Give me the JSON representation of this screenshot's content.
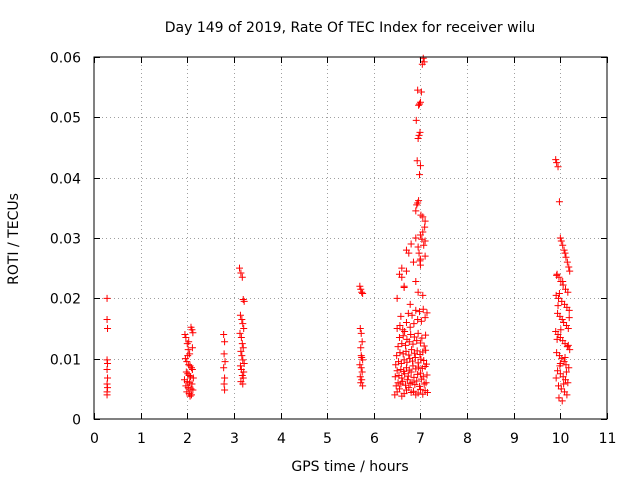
{
  "chart_data": {
    "type": "scatter",
    "title": "Day 149 of 2019, Rate Of TEC Index for receiver wilu",
    "xlabel": "GPS time / hours",
    "ylabel": "ROTI / TECUs",
    "xlim": [
      0,
      11
    ],
    "ylim": [
      0,
      0.06
    ],
    "xticks": [
      0,
      1,
      2,
      3,
      4,
      5,
      6,
      7,
      8,
      9,
      10,
      11
    ],
    "xtick_labels": [
      "0",
      "1",
      "2",
      "3",
      "4",
      "5",
      "6",
      "7",
      "8",
      "9",
      "10",
      "11"
    ],
    "yticks": [
      0,
      0.01,
      0.02,
      0.03,
      0.04,
      0.05,
      0.06
    ],
    "ytick_labels": [
      "0",
      "0.01",
      "0.02",
      "0.03",
      "0.04",
      "0.05",
      "0.06"
    ],
    "grid": true,
    "marker": "+",
    "color": "#ff0000",
    "series": [
      {
        "name": "ROTI",
        "x": [
          0.28,
          0.28,
          0.29,
          0.28,
          0.29,
          0.28,
          0.29,
          0.28,
          0.29,
          0.28,
          0.28,
          1.95,
          1.97,
          2.0,
          2.02,
          2.05,
          2.08,
          2.1,
          2.12,
          1.96,
          1.99,
          2.03,
          2.06,
          2.09,
          2.11,
          1.98,
          2.01,
          2.04,
          2.07,
          2.13,
          1.94,
          2.0,
          2.05,
          2.1,
          1.97,
          2.02,
          2.08,
          2.12,
          1.99,
          2.04,
          2.09,
          2.06,
          2.01,
          2.11,
          2.03,
          2.78,
          2.8,
          2.79,
          2.81,
          2.78,
          2.8,
          2.79,
          2.8,
          3.12,
          3.15,
          3.18,
          3.2,
          3.22,
          3.14,
          3.17,
          3.19,
          3.21,
          3.13,
          3.16,
          3.18,
          3.2,
          3.15,
          3.17,
          3.19,
          3.22,
          3.14,
          3.16,
          3.21,
          3.18,
          3.2,
          3.15,
          3.19,
          5.7,
          5.72,
          5.74,
          5.76,
          5.71,
          5.73,
          5.75,
          5.72,
          5.74,
          5.76,
          5.7,
          5.73,
          5.75,
          5.71,
          5.74,
          5.72,
          5.76,
          5.73,
          6.45,
          6.5,
          6.55,
          6.6,
          6.65,
          6.7,
          6.75,
          6.8,
          6.85,
          6.9,
          6.95,
          7.0,
          7.05,
          7.1,
          7.15,
          6.48,
          6.52,
          6.58,
          6.62,
          6.68,
          6.72,
          6.78,
          6.82,
          6.88,
          6.92,
          6.98,
          7.02,
          7.08,
          7.12,
          6.46,
          6.54,
          6.6,
          6.66,
          6.74,
          6.8,
          6.86,
          6.94,
          7.0,
          7.06,
          7.14,
          6.5,
          6.58,
          6.64,
          6.7,
          6.76,
          6.84,
          6.9,
          6.96,
          7.04,
          7.1,
          6.47,
          6.53,
          6.59,
          6.65,
          6.71,
          6.77,
          6.83,
          6.89,
          6.95,
          7.01,
          7.07,
          7.13,
          6.49,
          6.56,
          6.63,
          6.69,
          6.75,
          6.81,
          6.87,
          6.93,
          6.99,
          7.05,
          7.11,
          6.52,
          6.6,
          6.68,
          6.76,
          6.84,
          6.92,
          7.0,
          7.08,
          6.55,
          6.63,
          6.71,
          6.79,
          6.87,
          6.95,
          7.03,
          7.11,
          6.5,
          6.56,
          6.62,
          6.7,
          6.78,
          6.86,
          6.94,
          7.02,
          7.1,
          6.58,
          6.66,
          6.74,
          6.82,
          6.9,
          6.98,
          7.06,
          7.14,
          6.5,
          6.55,
          6.6,
          6.65,
          6.7,
          6.78,
          6.85,
          6.9,
          6.95,
          7.0,
          7.05,
          7.1,
          6.6,
          6.7,
          6.8,
          6.9,
          7.0,
          7.1,
          6.65,
          6.75,
          6.95,
          7.05,
          6.9,
          6.92,
          6.94,
          6.96,
          6.98,
          7.0,
          6.93,
          6.95,
          6.97,
          6.99,
          6.91,
          6.96,
          6.98,
          7.0,
          6.94,
          7.02,
          7.04,
          7.06,
          7.08,
          7.1,
          7.05,
          7.09,
          7.0,
          7.03,
          7.07,
          6.97,
          6.99,
          7.01,
          9.9,
          9.92,
          9.95,
          9.98,
          10.0,
          10.02,
          10.05,
          10.08,
          10.1,
          10.12,
          10.15,
          10.18,
          10.2,
          9.93,
          9.97,
          10.01,
          10.06,
          10.11,
          10.16,
          9.91,
          9.96,
          10.03,
          10.09,
          10.14,
          10.19,
          9.94,
          9.99,
          10.04,
          10.07,
          10.13,
          10.17,
          9.9,
          9.95,
          10.0,
          10.05,
          10.1,
          10.15,
          10.2,
          9.92,
          9.98,
          10.03,
          10.08,
          10.12,
          10.18,
          9.94,
          10.0,
          10.06,
          10.11,
          10.16,
          9.96,
          10.02,
          10.09,
          10.14,
          9.97,
          10.04,
          10.1,
          9.99,
          10.13,
          9.91,
          10.07,
          10.17,
          9.93,
          10.01,
          10.19,
          9.95,
          9.98,
          10.05,
          9.92,
          10.0
        ],
        "y": [
          0.02,
          0.0165,
          0.015,
          0.0098,
          0.0092,
          0.0082,
          0.0068,
          0.0058,
          0.0052,
          0.0045,
          0.004,
          0.014,
          0.0135,
          0.0125,
          0.0115,
          0.0108,
          0.0152,
          0.0148,
          0.0143,
          0.01,
          0.0095,
          0.009,
          0.0088,
          0.0085,
          0.0082,
          0.0078,
          0.0075,
          0.0072,
          0.007,
          0.0068,
          0.0065,
          0.0062,
          0.006,
          0.0058,
          0.0055,
          0.0052,
          0.005,
          0.0048,
          0.0045,
          0.0042,
          0.004,
          0.0038,
          0.0105,
          0.0118,
          0.0128,
          0.014,
          0.0128,
          0.0108,
          0.0095,
          0.0085,
          0.0068,
          0.0058,
          0.0048,
          0.025,
          0.0242,
          0.0235,
          0.0198,
          0.0195,
          0.0172,
          0.0165,
          0.0158,
          0.015,
          0.0142,
          0.0135,
          0.0125,
          0.0118,
          0.0112,
          0.0105,
          0.0098,
          0.0092,
          0.0088,
          0.0082,
          0.0078,
          0.0072,
          0.0068,
          0.0062,
          0.0058,
          0.022,
          0.0215,
          0.021,
          0.0208,
          0.015,
          0.0142,
          0.0128,
          0.0118,
          0.0102,
          0.0098,
          0.009,
          0.0085,
          0.0078,
          0.007,
          0.0065,
          0.006,
          0.0055,
          0.0105,
          0.004,
          0.0045,
          0.005,
          0.0038,
          0.0042,
          0.0048,
          0.0052,
          0.0044,
          0.0046,
          0.004,
          0.0043,
          0.0049,
          0.0041,
          0.0047,
          0.0044,
          0.0055,
          0.006,
          0.0058,
          0.0062,
          0.0056,
          0.0065,
          0.0059,
          0.0061,
          0.0057,
          0.0063,
          0.0054,
          0.0066,
          0.0058,
          0.006,
          0.007,
          0.0072,
          0.0068,
          0.0075,
          0.0071,
          0.0078,
          0.0069,
          0.0074,
          0.0076,
          0.007,
          0.0073,
          0.008,
          0.0082,
          0.0079,
          0.0085,
          0.0081,
          0.0088,
          0.0083,
          0.0086,
          0.0084,
          0.0087,
          0.009,
          0.0095,
          0.0092,
          0.0098,
          0.0094,
          0.01,
          0.0096,
          0.0102,
          0.0093,
          0.0099,
          0.0097,
          0.0091,
          0.0105,
          0.011,
          0.0108,
          0.0112,
          0.0106,
          0.0115,
          0.0109,
          0.0113,
          0.0107,
          0.0111,
          0.0114,
          0.012,
          0.0125,
          0.0122,
          0.0128,
          0.0124,
          0.013,
          0.0126,
          0.0121,
          0.0135,
          0.0138,
          0.0132,
          0.014,
          0.0136,
          0.0142,
          0.0134,
          0.0139,
          0.015,
          0.0155,
          0.0148,
          0.016,
          0.0152,
          0.0158,
          0.0165,
          0.0162,
          0.0168,
          0.017,
          0.0145,
          0.0175,
          0.0172,
          0.018,
          0.0178,
          0.0182,
          0.0176,
          0.02,
          0.024,
          0.025,
          0.022,
          0.028,
          0.019,
          0.026,
          0.03,
          0.021,
          0.0255,
          0.0205,
          0.027,
          0.0235,
          0.0245,
          0.029,
          0.0228,
          0.0265,
          0.0295,
          0.0218,
          0.0275,
          0.0285,
          0.031,
          0.0345,
          0.0355,
          0.0358,
          0.0362,
          0.0405,
          0.042,
          0.0428,
          0.0465,
          0.047,
          0.0475,
          0.0495,
          0.052,
          0.0522,
          0.0525,
          0.0545,
          0.0542,
          0.0588,
          0.0598,
          0.0592,
          0.0328,
          0.0335,
          0.0318,
          0.0305,
          0.0298,
          0.0288,
          0.0275,
          0.0262,
          0.0338,
          0.043,
          0.0425,
          0.0418,
          0.036,
          0.03,
          0.0295,
          0.0288,
          0.028,
          0.0275,
          0.0268,
          0.026,
          0.0252,
          0.0245,
          0.024,
          0.0235,
          0.0228,
          0.0222,
          0.0215,
          0.021,
          0.0205,
          0.02,
          0.0195,
          0.019,
          0.0185,
          0.018,
          0.0175,
          0.017,
          0.0165,
          0.016,
          0.0155,
          0.015,
          0.0145,
          0.014,
          0.0135,
          0.013,
          0.0125,
          0.012,
          0.0115,
          0.011,
          0.0105,
          0.01,
          0.0095,
          0.009,
          0.0085,
          0.008,
          0.0075,
          0.007,
          0.0065,
          0.006,
          0.0055,
          0.005,
          0.0045,
          0.004,
          0.0035,
          0.003,
          0.0102,
          0.0088,
          0.0078,
          0.0068,
          0.0058,
          0.0122,
          0.0132,
          0.0148,
          0.0168,
          0.0188,
          0.0208,
          0.0228,
          0.0238,
          0.0092
        ]
      }
    ]
  }
}
